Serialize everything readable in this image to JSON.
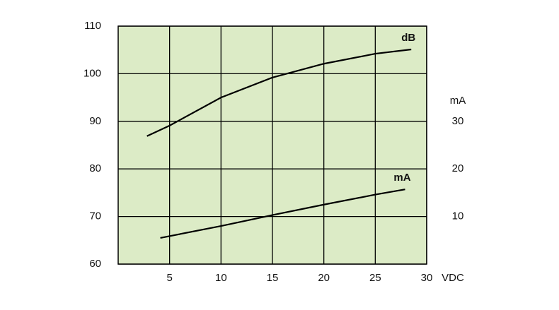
{
  "chart_data": {
    "type": "line",
    "xlabel": "VDC",
    "y2label": "mA",
    "xlim": [
      0,
      30
    ],
    "xticks": [
      5,
      10,
      15,
      20,
      25,
      30
    ],
    "ylim": [
      60,
      110
    ],
    "yticks": [
      60,
      70,
      80,
      90,
      100,
      110
    ],
    "y2lim": [
      0,
      50
    ],
    "y2ticks": [
      10,
      20,
      30
    ],
    "grid": true,
    "background": "#dcebc6",
    "series": [
      {
        "name": "dB",
        "color": "#000000",
        "x": [
          2.8,
          5,
          10,
          15,
          20,
          25,
          28.5
        ],
        "values": [
          86.9,
          89.1,
          95,
          99.2,
          102.1,
          104.2,
          105.1
        ]
      },
      {
        "name": "mA",
        "color": "#000000",
        "axis": "y2",
        "x": [
          4.1,
          10,
          15,
          20,
          25,
          27.9
        ],
        "values": [
          5.5,
          8,
          10.3,
          12.5,
          14.6,
          15.7
        ]
      }
    ]
  }
}
